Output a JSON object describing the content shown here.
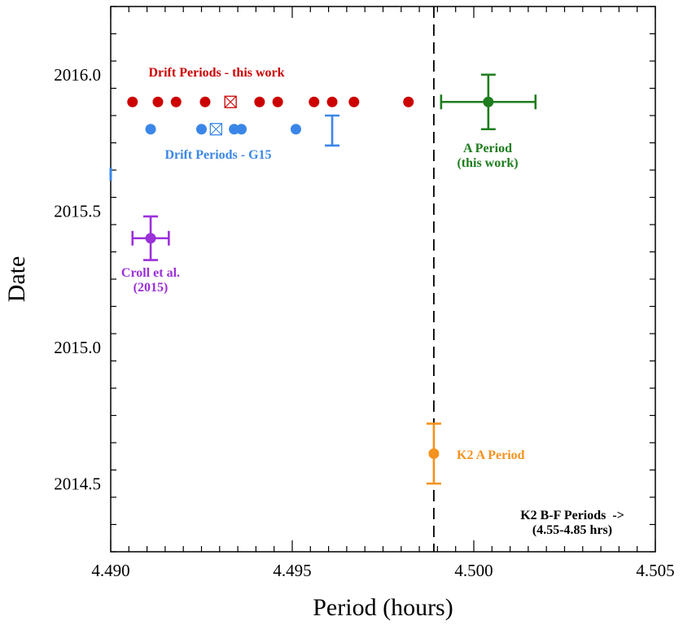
{
  "chart_data": {
    "type": "scatter",
    "xlabel": "Period (hours)",
    "ylabel": "Date",
    "xlim": [
      4.49,
      4.505
    ],
    "ylim": [
      2014.25,
      2016.25
    ],
    "x_ticks": [
      "4.490",
      "4.495",
      "4.500",
      "4.505"
    ],
    "x_tick_values": [
      4.49,
      4.495,
      4.5,
      4.505
    ],
    "y_ticks": [
      "2014.5",
      "2015.0",
      "2015.5",
      "2016.0"
    ],
    "y_tick_values": [
      2014.5,
      2015.0,
      2015.5,
      2016.0
    ],
    "reference_line": {
      "x": 4.4989,
      "style": "dashed",
      "color": "#000000"
    },
    "series": [
      {
        "name": "Drift Periods - this work",
        "color": "#cc0000",
        "points": [
          {
            "x": 4.4906,
            "y": 2015.9
          },
          {
            "x": 4.4913,
            "y": 2015.9
          },
          {
            "x": 4.4918,
            "y": 2015.9
          },
          {
            "x": 4.4926,
            "y": 2015.9
          },
          {
            "x": 4.4941,
            "y": 2015.9
          },
          {
            "x": 4.4946,
            "y": 2015.9
          },
          {
            "x": 4.4956,
            "y": 2015.9
          },
          {
            "x": 4.4961,
            "y": 2015.9
          },
          {
            "x": 4.4967,
            "y": 2015.9
          },
          {
            "x": 4.4982,
            "y": 2015.9
          }
        ],
        "marker": {
          "x": 4.4933,
          "y": 2015.9
        }
      },
      {
        "name": "Drift Periods - G15",
        "color": "#3a86e8",
        "points": [
          {
            "x": 4.4911,
            "y": 2015.8
          },
          {
            "x": 4.4925,
            "y": 2015.8
          },
          {
            "x": 4.4934,
            "y": 2015.8
          },
          {
            "x": 4.4936,
            "y": 2015.8
          },
          {
            "x": 4.4951,
            "y": 2015.8
          }
        ],
        "marker": {
          "x": 4.4929,
          "y": 2015.8
        },
        "error_bar": {
          "x": 4.4961,
          "y_low": 2015.74,
          "y_high": 2015.85
        }
      },
      {
        "name": "A Period (this work)",
        "color": "#1e7d1e",
        "points": [
          {
            "x": 4.5004,
            "y": 2015.9,
            "xerr": 0.0013,
            "yerr": 0.1
          }
        ]
      },
      {
        "name": "Croll et al. (2015)",
        "color": "#9b30d9",
        "points": [
          {
            "x": 4.4911,
            "y": 2015.4,
            "xerr": 0.0005,
            "yerr": 0.08
          }
        ]
      },
      {
        "name": "K2 A Period",
        "color": "#f5921e",
        "points": [
          {
            "x": 4.4989,
            "y": 2014.61,
            "yerr": 0.11
          }
        ]
      }
    ],
    "annotations": [
      {
        "id": "drift_this_work",
        "lines": [
          "Drift Periods - this work"
        ],
        "color": "#cc0000"
      },
      {
        "id": "drift_g15",
        "lines": [
          "Drift Periods - G15"
        ],
        "color": "#3a86e8"
      },
      {
        "id": "a_period",
        "lines": [
          "A Period",
          "(this work)"
        ],
        "color": "#1e7d1e"
      },
      {
        "id": "croll",
        "lines": [
          "Croll et al.",
          "(2015)"
        ],
        "color": "#9b30d9"
      },
      {
        "id": "k2_a",
        "lines": [
          "K2 A Period"
        ],
        "color": "#f5921e"
      },
      {
        "id": "k2_bf",
        "lines": [
          "K2 B-F Periods  ->",
          "(4.55-4.85 hrs)"
        ],
        "color": "#000000"
      }
    ]
  }
}
